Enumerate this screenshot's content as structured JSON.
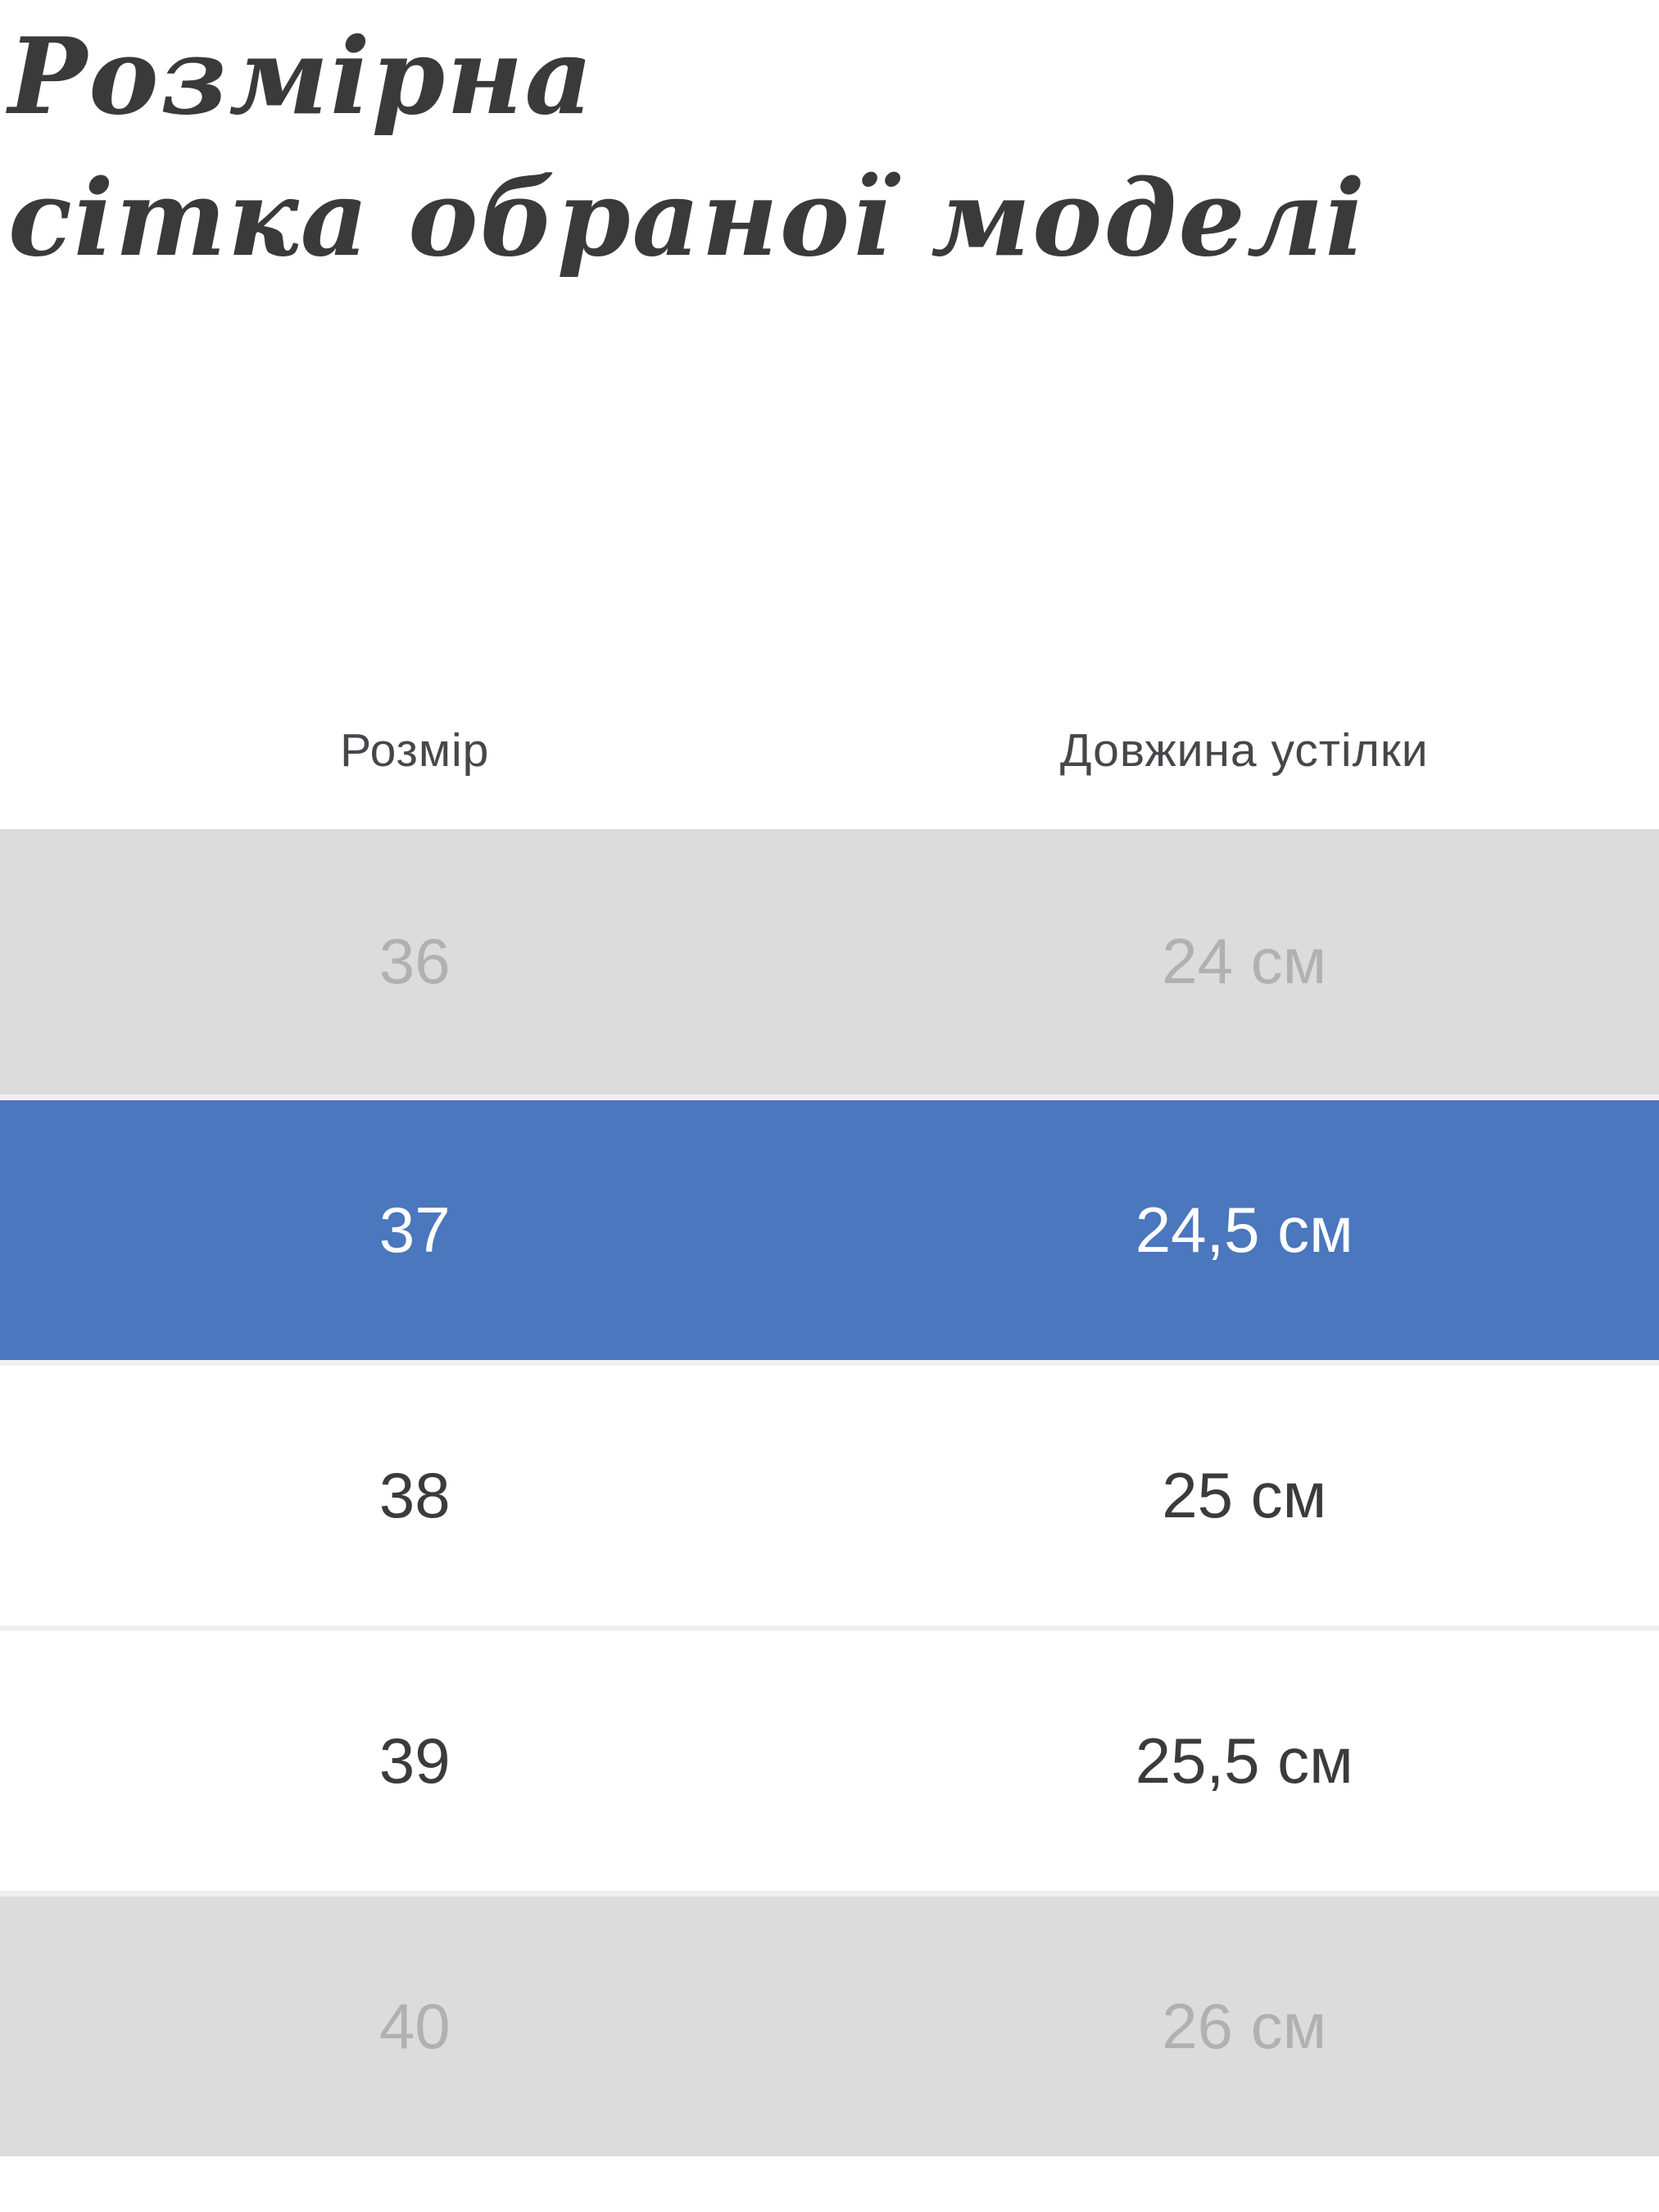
{
  "page": {
    "title_line1": "Розмірна",
    "title_line2": "сітка обраної моделі"
  },
  "table": {
    "columns": [
      {
        "label": "Розмір"
      },
      {
        "label": "Довжина устілки"
      }
    ],
    "rows": [
      {
        "size": "36",
        "insole_length": "24 см",
        "state": "unavailable"
      },
      {
        "size": "37",
        "insole_length": "24,5 см",
        "state": "selected"
      },
      {
        "size": "38",
        "insole_length": "25 см",
        "state": "available"
      },
      {
        "size": "39",
        "insole_length": "25,5 см",
        "state": "available"
      },
      {
        "size": "40",
        "insole_length": "26 см",
        "state": "unavailable"
      }
    ]
  },
  "colors": {
    "selected_row_bg": "#4a77bd",
    "selected_row_text": "#ffffff",
    "unavailable_row_bg": "#dcdcdc",
    "unavailable_row_text": "#b1b1b1",
    "available_row_text": "#3b3b3b",
    "heading_text": "#3a3a3a",
    "column_header_text": "#47474b",
    "row_separator": "#f1efed",
    "page_background": "#ffffff"
  }
}
